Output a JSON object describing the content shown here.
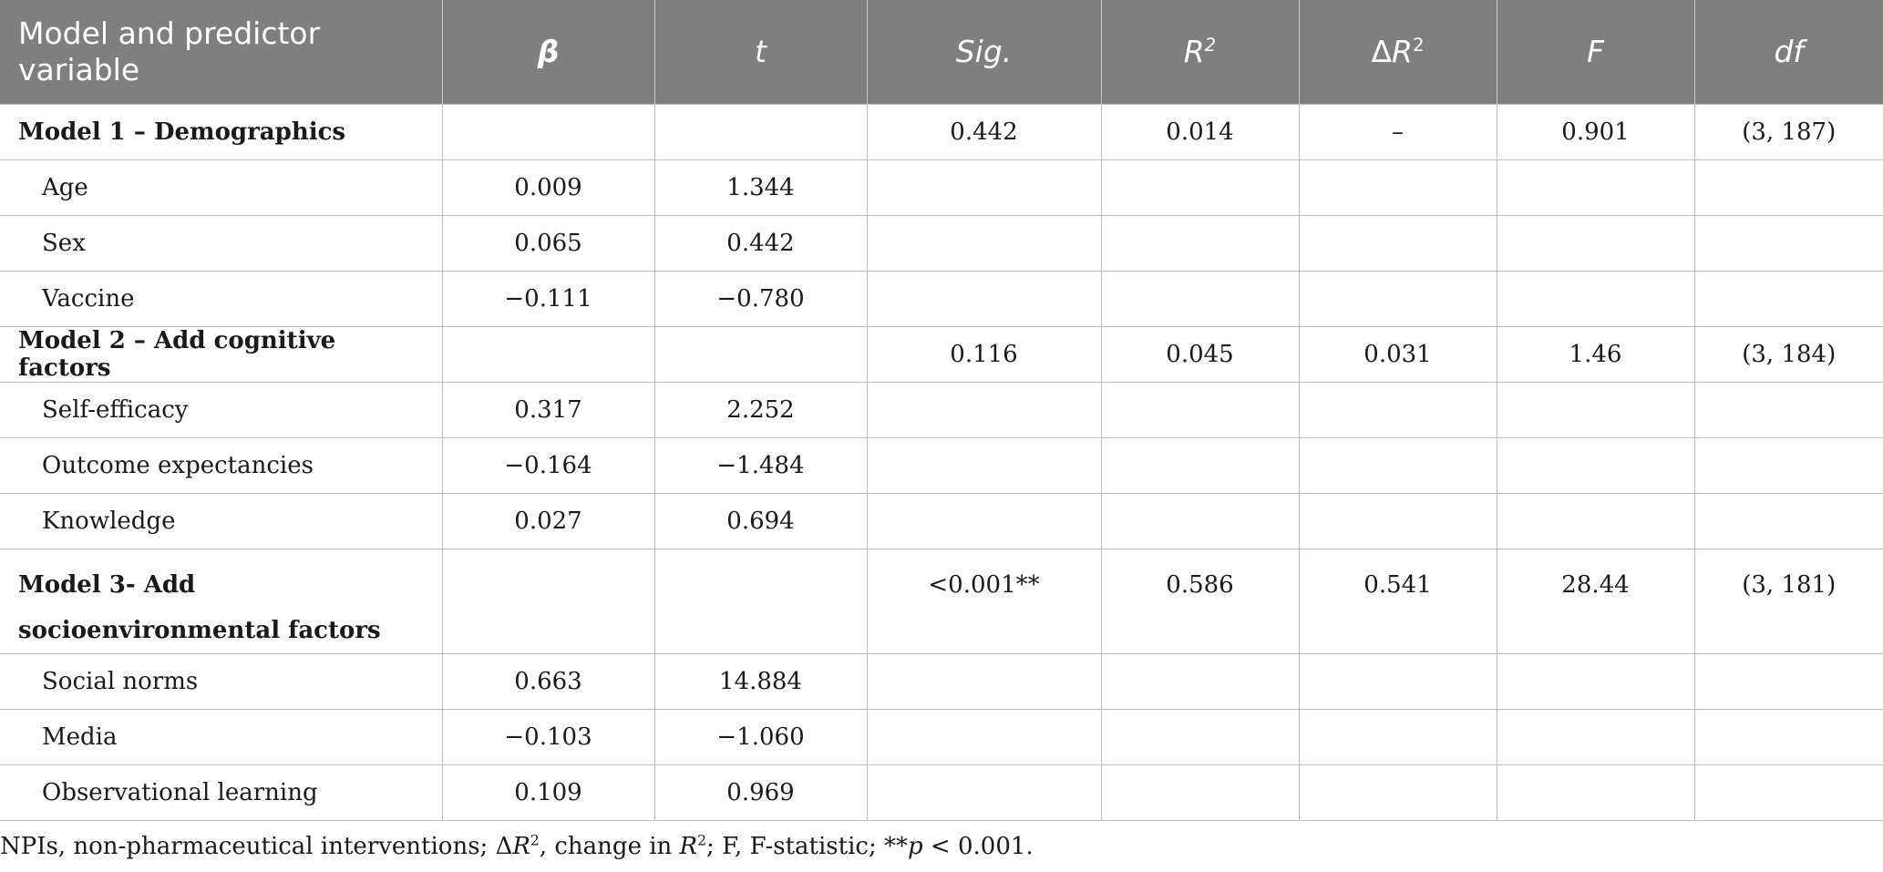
{
  "headers": [
    "Model and predictor variable",
    "β",
    "t",
    "Sig.",
    "R2",
    "ΔR2",
    "F",
    "df"
  ],
  "rows": [
    {
      "type": "model",
      "label": "Model 1 – Demographics",
      "beta": "",
      "t": "",
      "sig": "0.442",
      "r2": "0.014",
      "dr2": "–",
      "f": "0.901",
      "df": "(3, 187)"
    },
    {
      "type": "sub",
      "label": "Age",
      "beta": "0.009",
      "t": "1.344",
      "sig": "",
      "r2": "",
      "dr2": "",
      "f": "",
      "df": ""
    },
    {
      "type": "sub",
      "label": "Sex",
      "beta": "0.065",
      "t": "0.442",
      "sig": "",
      "r2": "",
      "dr2": "",
      "f": "",
      "df": ""
    },
    {
      "type": "sub",
      "label": "Vaccine",
      "beta": "−0.111",
      "t": "−0.780",
      "sig": "",
      "r2": "",
      "dr2": "",
      "f": "",
      "df": ""
    },
    {
      "type": "model",
      "label": "Model 2 – Add cognitive factors",
      "beta": "",
      "t": "",
      "sig": "0.116",
      "r2": "0.045",
      "dr2": "0.031",
      "f": "1.46",
      "df": "(3, 184)"
    },
    {
      "type": "sub",
      "label": "Self-efficacy",
      "beta": "0.317",
      "t": "2.252",
      "sig": "",
      "r2": "",
      "dr2": "",
      "f": "",
      "df": ""
    },
    {
      "type": "sub",
      "label": "Outcome expectancies",
      "beta": "−0.164",
      "t": "−1.484",
      "sig": "",
      "r2": "",
      "dr2": "",
      "f": "",
      "df": ""
    },
    {
      "type": "sub",
      "label": "Knowledge",
      "beta": "0.027",
      "t": "0.694",
      "sig": "",
      "r2": "",
      "dr2": "",
      "f": "",
      "df": ""
    },
    {
      "type": "model",
      "label": "Model 3- Add socioenvironmental factors",
      "beta": "",
      "t": "",
      "sig": "<0.001**",
      "r2": "0.586",
      "dr2": "0.541",
      "f": "28.44",
      "df": "(3, 181)"
    },
    {
      "type": "sub",
      "label": "Social norms",
      "beta": "0.663",
      "t": "14.884",
      "sig": "",
      "r2": "",
      "dr2": "",
      "f": "",
      "df": ""
    },
    {
      "type": "sub",
      "label": "Media",
      "beta": "−0.103",
      "t": "−1.060",
      "sig": "",
      "r2": "",
      "dr2": "",
      "f": "",
      "df": ""
    },
    {
      "type": "sub",
      "label": "Observational learning",
      "beta": "0.109",
      "t": "0.969",
      "sig": "",
      "r2": "",
      "dr2": "",
      "f": "",
      "df": ""
    }
  ],
  "footnote": {
    "p1": "NPIs, non-pharmaceutical interventions; Δ",
    "r_italic": "R",
    "sup2": "2",
    "p2": ", change in ",
    "r_italic_2": "R",
    "sup2_2": "2",
    "p3": "; F, F-statistic; **",
    "p_italic": "p",
    "p4": " < 0.001."
  }
}
